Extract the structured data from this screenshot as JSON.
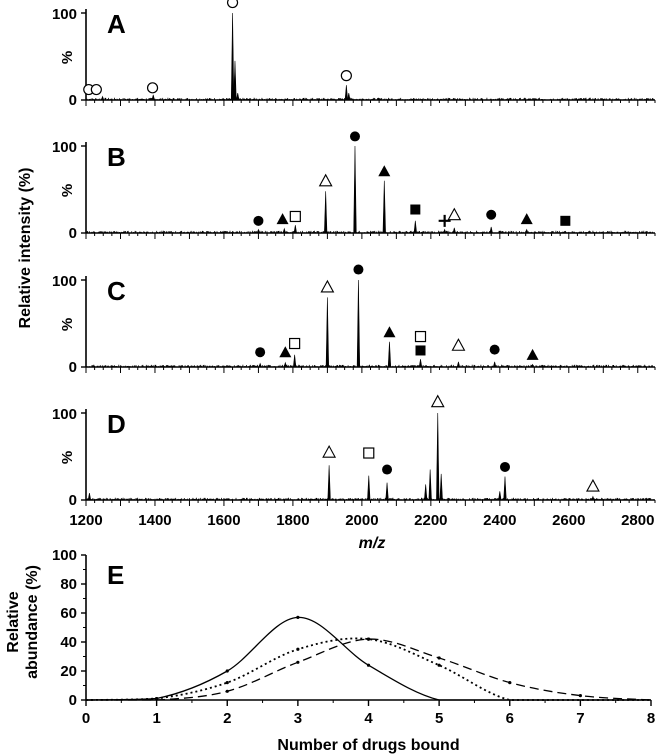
{
  "chart_data": [
    {
      "type": "line",
      "panel": "A",
      "ylabel": "%",
      "ytick_max": "100",
      "ytick_min": "0",
      "peaks": [
        {
          "mz": 1625,
          "rel": 100
        },
        {
          "mz": 1632,
          "rel": 45
        },
        {
          "mz": 1640,
          "rel": 8
        },
        {
          "mz": 1955,
          "rel": 17
        },
        {
          "mz": 1962,
          "rel": 8
        },
        {
          "mz": 1395,
          "rel": 6
        },
        {
          "mz": 1248,
          "rel": 4
        }
      ],
      "markers": [
        {
          "mz": 1208,
          "rel": 12,
          "sym": "open-circle"
        },
        {
          "mz": 1230,
          "rel": 12,
          "sym": "open-circle"
        },
        {
          "mz": 1393,
          "rel": 14,
          "sym": "open-circle"
        },
        {
          "mz": 1625,
          "rel": 112,
          "sym": "open-circle"
        },
        {
          "mz": 1955,
          "rel": 28,
          "sym": "open-circle"
        }
      ]
    },
    {
      "type": "line",
      "panel": "B",
      "ylabel": "%",
      "ytick_max": "100",
      "ytick_min": "0",
      "peaks": [
        {
          "mz": 1700,
          "rel": 4
        },
        {
          "mz": 1775,
          "rel": 5
        },
        {
          "mz": 1807,
          "rel": 9
        },
        {
          "mz": 1895,
          "rel": 48
        },
        {
          "mz": 1980,
          "rel": 100
        },
        {
          "mz": 2065,
          "rel": 60
        },
        {
          "mz": 2155,
          "rel": 14
        },
        {
          "mz": 2240,
          "rel": 4
        },
        {
          "mz": 2268,
          "rel": 6
        },
        {
          "mz": 2375,
          "rel": 7
        },
        {
          "mz": 2478,
          "rel": 4
        },
        {
          "mz": 2590,
          "rel": 2
        }
      ],
      "markers": [
        {
          "mz": 1700,
          "rel": 14,
          "sym": "filled-circle"
        },
        {
          "mz": 1770,
          "rel": 16,
          "sym": "filled-triangle"
        },
        {
          "mz": 1807,
          "rel": 19,
          "sym": "open-square"
        },
        {
          "mz": 1895,
          "rel": 60,
          "sym": "open-triangle"
        },
        {
          "mz": 1980,
          "rel": 111,
          "sym": "filled-circle"
        },
        {
          "mz": 2065,
          "rel": 71,
          "sym": "filled-triangle"
        },
        {
          "mz": 2155,
          "rel": 27,
          "sym": "filled-square"
        },
        {
          "mz": 2240,
          "rel": 14,
          "sym": "plus"
        },
        {
          "mz": 2268,
          "rel": 21,
          "sym": "open-triangle"
        },
        {
          "mz": 2375,
          "rel": 21,
          "sym": "filled-circle"
        },
        {
          "mz": 2478,
          "rel": 16,
          "sym": "filled-triangle"
        },
        {
          "mz": 2590,
          "rel": 14,
          "sym": "filled-square"
        }
      ]
    },
    {
      "type": "line",
      "panel": "C",
      "ylabel": "%",
      "ytick_max": "100",
      "ytick_min": "0",
      "peaks": [
        {
          "mz": 1705,
          "rel": 4
        },
        {
          "mz": 1778,
          "rel": 5
        },
        {
          "mz": 1805,
          "rel": 14
        },
        {
          "mz": 1900,
          "rel": 80
        },
        {
          "mz": 1990,
          "rel": 100
        },
        {
          "mz": 2080,
          "rel": 29
        },
        {
          "mz": 2170,
          "rel": 9
        },
        {
          "mz": 2280,
          "rel": 6
        },
        {
          "mz": 2385,
          "rel": 6
        },
        {
          "mz": 2495,
          "rel": 3
        }
      ],
      "markers": [
        {
          "mz": 1705,
          "rel": 17,
          "sym": "filled-circle"
        },
        {
          "mz": 1778,
          "rel": 17,
          "sym": "filled-triangle"
        },
        {
          "mz": 1805,
          "rel": 27,
          "sym": "open-square"
        },
        {
          "mz": 1900,
          "rel": 92,
          "sym": "open-triangle"
        },
        {
          "mz": 1990,
          "rel": 112,
          "sym": "filled-circle"
        },
        {
          "mz": 2080,
          "rel": 40,
          "sym": "filled-triangle"
        },
        {
          "mz": 2170,
          "rel": 35,
          "sym": "open-square"
        },
        {
          "mz": 2170,
          "rel": 19,
          "sym": "filled-square"
        },
        {
          "mz": 2280,
          "rel": 25,
          "sym": "open-triangle"
        },
        {
          "mz": 2385,
          "rel": 20,
          "sym": "filled-circle"
        },
        {
          "mz": 2495,
          "rel": 14,
          "sym": "filled-triangle"
        }
      ]
    },
    {
      "type": "line",
      "panel": "D",
      "ylabel": "%",
      "ytick_max": "100",
      "ytick_min": "0",
      "xlabel": "m/z",
      "xlim": [
        1200,
        2850
      ],
      "xticks": [
        "1200",
        "1400",
        "1600",
        "1800",
        "2000",
        "2200",
        "2400",
        "2600",
        "2800"
      ],
      "peaks": [
        {
          "mz": 1905,
          "rel": 40
        },
        {
          "mz": 2020,
          "rel": 28
        },
        {
          "mz": 2073,
          "rel": 20
        },
        {
          "mz": 2185,
          "rel": 18
        },
        {
          "mz": 2198,
          "rel": 35
        },
        {
          "mz": 2220,
          "rel": 100
        },
        {
          "mz": 2230,
          "rel": 30
        },
        {
          "mz": 2400,
          "rel": 10
        },
        {
          "mz": 2415,
          "rel": 27
        },
        {
          "mz": 2670,
          "rel": 4
        },
        {
          "mz": 1210,
          "rel": 8
        }
      ],
      "markers": [
        {
          "mz": 1905,
          "rel": 55,
          "sym": "open-triangle"
        },
        {
          "mz": 2020,
          "rel": 54,
          "sym": "open-square"
        },
        {
          "mz": 2073,
          "rel": 35,
          "sym": "filled-circle"
        },
        {
          "mz": 2220,
          "rel": 113,
          "sym": "open-triangle"
        },
        {
          "mz": 2415,
          "rel": 38,
          "sym": "filled-circle"
        },
        {
          "mz": 2670,
          "rel": 16,
          "sym": "open-triangle"
        }
      ]
    },
    {
      "type": "line",
      "panel": "E",
      "xlabel": "Number of drugs bound",
      "ylabel": "Relative abundance (%)",
      "xlim": [
        0,
        8
      ],
      "ylim": [
        0,
        100
      ],
      "xticks": [
        "0",
        "1",
        "2",
        "3",
        "4",
        "5",
        "6",
        "7",
        "8"
      ],
      "yticks": [
        "0",
        "20",
        "40",
        "60",
        "80",
        "100"
      ],
      "x": [
        0,
        1,
        2,
        3,
        4,
        5,
        6,
        7,
        8
      ],
      "series": [
        {
          "style": "solid",
          "values": [
            0,
            1,
            20,
            57,
            24,
            0,
            0,
            0,
            0
          ]
        },
        {
          "style": "dotted",
          "values": [
            0,
            1,
            12,
            35,
            42,
            24,
            0,
            0,
            0
          ]
        },
        {
          "style": "dashed",
          "values": [
            0,
            0,
            6,
            26,
            42,
            29,
            12,
            3,
            0
          ]
        }
      ]
    }
  ],
  "shared": {
    "ylabel": "Relative intensity (%)"
  },
  "colors": {
    "ink": "#000000",
    "background": "#ffffff"
  }
}
